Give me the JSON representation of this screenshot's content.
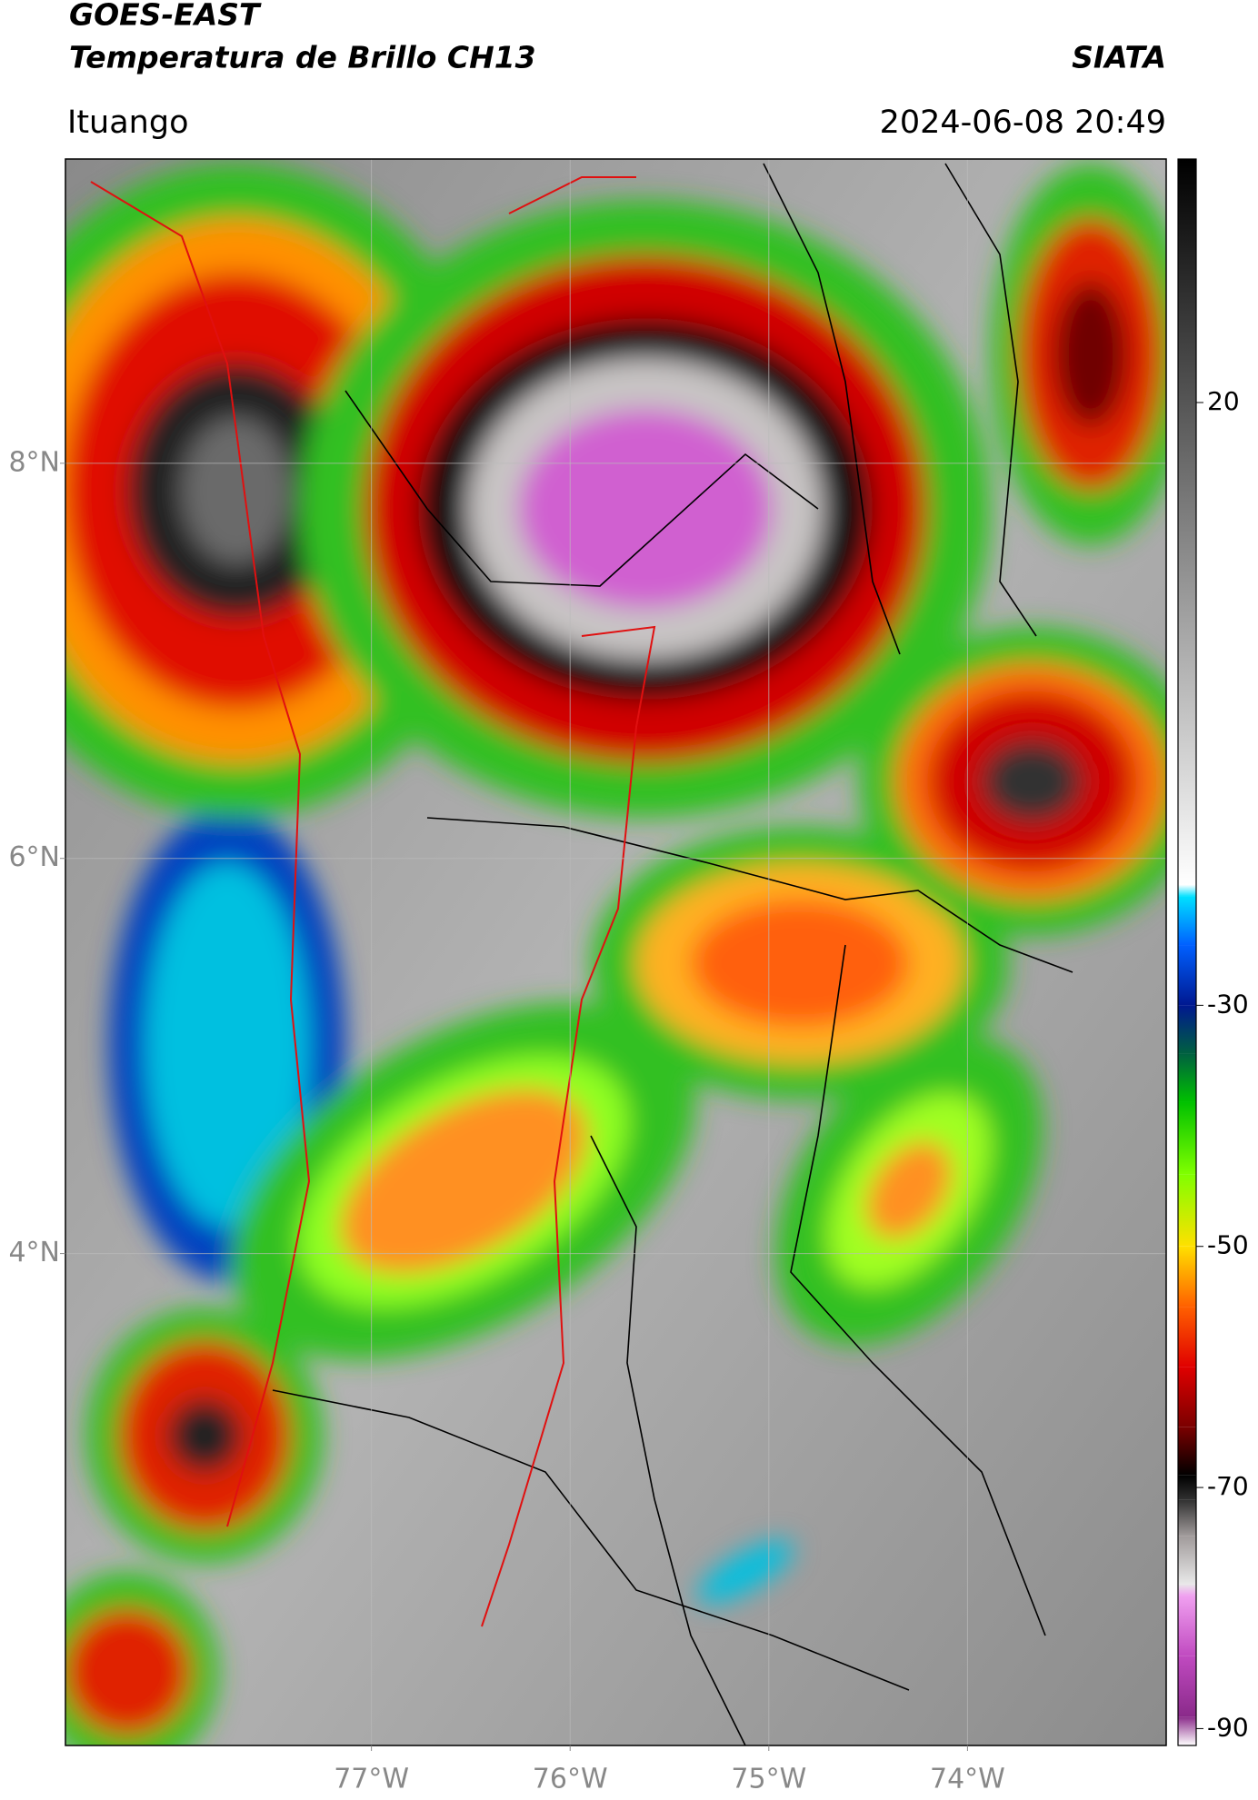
{
  "header": {
    "title": "GOES-EAST",
    "subtitle": "Temperatura de Brillo CH13",
    "organization": "SIATA",
    "location": "Ituango",
    "datetime": "2024-06-08 20:49"
  },
  "map": {
    "xlim": [
      -78.54,
      -73.0
    ],
    "ylim": [
      1.51,
      9.54
    ],
    "xticks": [
      {
        "value": -77,
        "label": "77°W"
      },
      {
        "value": -76,
        "label": "76°W"
      },
      {
        "value": -75,
        "label": "75°W"
      },
      {
        "value": -74,
        "label": "74°W"
      }
    ],
    "yticks": [
      {
        "value": 8,
        "label": "8°N"
      },
      {
        "value": 6,
        "label": "6°N"
      },
      {
        "value": 4,
        "label": "4°N"
      }
    ],
    "grid": true
  },
  "colorbar": {
    "clim": [
      -91.4,
      40.2
    ],
    "ticks": [
      20,
      -30,
      -50,
      -70,
      -90
    ],
    "colormap": [
      {
        "value": -91.4,
        "color": "#ffffff"
      },
      {
        "value": -89,
        "color": "#8a2a8a"
      },
      {
        "value": -84,
        "color": "#c04ac0"
      },
      {
        "value": -79,
        "color": "#f0a0f0"
      },
      {
        "value": -78,
        "color": "#e8e8e8"
      },
      {
        "value": -74,
        "color": "#a09a9a"
      },
      {
        "value": -71,
        "color": "#303030"
      },
      {
        "value": -69,
        "color": "#000000"
      },
      {
        "value": -65,
        "color": "#7a0000"
      },
      {
        "value": -60,
        "color": "#e00000"
      },
      {
        "value": -55,
        "color": "#ff6000"
      },
      {
        "value": -50,
        "color": "#ffe000"
      },
      {
        "value": -44,
        "color": "#80ff00"
      },
      {
        "value": -38,
        "color": "#00c000"
      },
      {
        "value": -34,
        "color": "#006040"
      },
      {
        "value": -30,
        "color": "#001890"
      },
      {
        "value": -25,
        "color": "#0060ff"
      },
      {
        "value": -21,
        "color": "#00e0ff"
      },
      {
        "value": -20,
        "color": "#ffffff"
      },
      {
        "value": 40.2,
        "color": "#000000"
      }
    ]
  }
}
